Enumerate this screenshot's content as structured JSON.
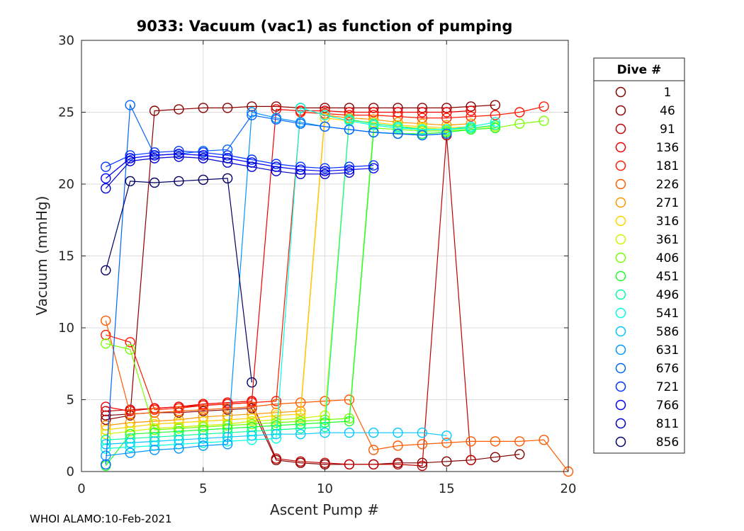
{
  "chart_data": {
    "type": "line",
    "title": "9033: Vacuum (vac1) as function of pumping",
    "xlabel": "Ascent Pump #",
    "ylabel": "Vacuum (mmHg)",
    "xlim": [
      0,
      20
    ],
    "ylim": [
      0,
      30
    ],
    "xticks": [
      0,
      5,
      10,
      15,
      20
    ],
    "yticks": [
      0,
      5,
      10,
      15,
      20,
      25,
      30
    ],
    "grid": true,
    "legend": {
      "title": "Dive #",
      "placement": "outside-right"
    },
    "series": [
      {
        "name": "1",
        "color": "#800000",
        "x": [
          1,
          2,
          3,
          4,
          5,
          6,
          7,
          8,
          9,
          10,
          11,
          12,
          13,
          14,
          15,
          16,
          17,
          18
        ],
        "values": [
          3.9,
          4.0,
          4.1,
          4.1,
          4.2,
          4.3,
          4.4,
          0.8,
          0.6,
          0.5,
          0.5,
          0.5,
          0.6,
          0.6,
          0.7,
          0.8,
          1.0,
          1.2
        ]
      },
      {
        "name": "46",
        "color": "#8c0000",
        "x": [
          1,
          2,
          3,
          4,
          5,
          6,
          7,
          8,
          9,
          10,
          11,
          12,
          13,
          14,
          15,
          16,
          17
        ],
        "values": [
          3.6,
          3.9,
          25.1,
          25.2,
          25.3,
          25.3,
          25.4,
          25.4,
          25.3,
          25.3,
          25.3,
          25.3,
          25.3,
          25.3,
          25.3,
          25.4,
          25.5
        ]
      },
      {
        "name": "91",
        "color": "#bf0000",
        "x": [
          1,
          2,
          3,
          4,
          5,
          6,
          7,
          8,
          9,
          10,
          11,
          12,
          13,
          14,
          15,
          16
        ],
        "values": [
          4.2,
          4.3,
          4.4,
          4.5,
          4.6,
          4.7,
          4.8,
          0.9,
          0.7,
          0.6,
          0.5,
          0.5,
          0.5,
          0.4,
          23.4,
          0.8
        ]
      },
      {
        "name": "136",
        "color": "#f20000",
        "x": [
          1,
          2,
          3,
          4,
          5,
          6,
          7,
          8,
          9,
          10,
          11,
          12,
          13,
          14,
          15,
          16
        ],
        "values": [
          4.5,
          4.2,
          4.4,
          4.5,
          4.7,
          4.8,
          4.9,
          25.2,
          25.1,
          25.1,
          25.0,
          25.0,
          25.0,
          25.0,
          25.0,
          25.1
        ]
      },
      {
        "name": "181",
        "color": "#ff1a00",
        "x": [
          1,
          2,
          3,
          4,
          5,
          6,
          7,
          8,
          9,
          10,
          11,
          12,
          13,
          14,
          15,
          16,
          17,
          18,
          19
        ],
        "values": [
          9.5,
          9.0,
          4.3,
          4.4,
          4.6,
          4.7,
          4.8,
          4.9,
          25.0,
          24.9,
          24.8,
          24.8,
          24.7,
          24.6,
          24.6,
          24.7,
          24.8,
          25.0,
          25.4
        ]
      },
      {
        "name": "226",
        "color": "#ff5a00",
        "x": [
          1,
          2,
          3,
          4,
          5,
          6,
          7,
          8,
          9,
          10,
          11,
          12,
          13,
          14,
          15,
          16,
          17,
          18,
          19,
          20
        ],
        "values": [
          10.5,
          4.0,
          4.1,
          4.2,
          4.3,
          4.4,
          4.5,
          4.7,
          4.8,
          4.9,
          5.0,
          1.5,
          1.8,
          1.9,
          2.0,
          2.1,
          2.1,
          2.1,
          2.2,
          0.0
        ]
      },
      {
        "name": "271",
        "color": "#ff9600",
        "x": [
          1,
          2,
          3,
          4,
          5,
          6,
          7,
          8,
          9,
          10,
          11,
          12,
          13,
          14,
          15,
          16
        ],
        "values": [
          3.2,
          3.4,
          3.5,
          3.6,
          3.8,
          3.9,
          4.0,
          4.1,
          4.2,
          24.8,
          24.6,
          24.5,
          24.3,
          24.2,
          24.1,
          24.2
        ]
      },
      {
        "name": "316",
        "color": "#ffd200",
        "x": [
          1,
          2,
          3,
          4,
          5,
          6,
          7,
          8,
          9,
          10,
          11,
          12,
          13,
          14,
          15,
          16
        ],
        "values": [
          2.9,
          3.1,
          3.3,
          3.4,
          3.5,
          3.6,
          3.7,
          3.9,
          4.0,
          24.6,
          24.4,
          24.3,
          24.1,
          24.0,
          23.9,
          24.0
        ]
      },
      {
        "name": "361",
        "color": "#d2f000",
        "x": [
          1,
          2,
          3,
          4,
          5,
          6,
          7,
          8,
          9,
          10,
          11,
          12,
          13,
          14,
          15,
          16,
          17
        ],
        "values": [
          2.6,
          2.8,
          3.0,
          3.1,
          3.2,
          3.3,
          3.5,
          3.6,
          3.7,
          3.9,
          24.5,
          24.2,
          24.0,
          23.9,
          23.8,
          23.9,
          24.0
        ]
      },
      {
        "name": "406",
        "color": "#78ff00",
        "x": [
          1,
          2,
          3,
          4,
          5,
          6,
          7,
          8,
          9,
          10,
          11,
          12,
          13,
          14,
          15,
          16,
          17,
          18,
          19
        ],
        "values": [
          8.9,
          8.5,
          2.9,
          3.0,
          3.1,
          3.2,
          3.3,
          3.4,
          3.5,
          3.6,
          3.7,
          23.9,
          23.8,
          23.7,
          23.7,
          23.8,
          23.9,
          24.2,
          24.4
        ]
      },
      {
        "name": "451",
        "color": "#1eff2d",
        "x": [
          1,
          2,
          3,
          4,
          5,
          6,
          7,
          8,
          9,
          10,
          11,
          12,
          13,
          14,
          15,
          16,
          17
        ],
        "values": [
          0.4,
          2.6,
          2.7,
          2.8,
          2.9,
          3.0,
          3.1,
          3.2,
          3.3,
          3.4,
          3.5,
          23.6,
          23.5,
          23.5,
          23.6,
          23.8,
          23.9
        ]
      },
      {
        "name": "496",
        "color": "#00ff9b",
        "x": [
          1,
          2,
          3,
          4,
          5,
          6,
          7,
          8,
          9,
          10,
          11,
          12,
          13,
          14,
          15,
          16,
          17
        ],
        "values": [
          2.2,
          2.3,
          2.4,
          2.5,
          2.6,
          2.7,
          2.8,
          2.9,
          3.0,
          3.1,
          24.5,
          24.2,
          24.0,
          23.8,
          23.8,
          23.9,
          24.1
        ]
      },
      {
        "name": "541",
        "color": "#00ffdc",
        "x": [
          1,
          2,
          3,
          4,
          5,
          6,
          7,
          8,
          9,
          10,
          11,
          12,
          13,
          14,
          15,
          16,
          17
        ],
        "values": [
          1.6,
          1.7,
          1.8,
          1.9,
          2.0,
          2.1,
          2.2,
          2.3,
          25.3,
          24.8,
          24.4,
          24.1,
          23.9,
          23.8,
          23.8,
          24.0,
          24.3
        ]
      },
      {
        "name": "586",
        "color": "#00c8ff",
        "x": [
          1,
          2,
          3,
          4,
          5,
          6,
          7,
          8,
          9,
          10,
          11,
          12,
          13,
          14,
          15
        ],
        "values": [
          1.9,
          2.0,
          2.1,
          2.2,
          2.3,
          2.4,
          2.5,
          2.6,
          2.6,
          2.7,
          2.7,
          2.7,
          2.7,
          2.7,
          2.5
        ]
      },
      {
        "name": "631",
        "color": "#0096ff",
        "x": [
          1,
          2,
          3,
          4,
          5,
          6,
          7,
          8,
          9,
          10,
          11,
          12,
          13,
          14,
          15
        ],
        "values": [
          1.1,
          1.3,
          1.5,
          1.6,
          1.8,
          1.9,
          25.0,
          24.6,
          24.3,
          24.0,
          23.8,
          23.6,
          23.5,
          23.4,
          23.5
        ]
      },
      {
        "name": "676",
        "color": "#0064ff",
        "x": [
          1,
          2,
          3,
          4,
          5,
          6,
          7,
          8,
          9,
          10,
          11,
          12,
          13,
          14,
          15
        ],
        "values": [
          0.5,
          25.5,
          22.0,
          22.1,
          22.3,
          22.4,
          24.8,
          24.5,
          24.2,
          24.0,
          23.8,
          23.6,
          23.5,
          23.4,
          23.5
        ]
      },
      {
        "name": "721",
        "color": "#0032ff",
        "x": [
          1,
          2,
          3,
          4,
          5,
          6,
          7,
          8,
          9,
          10,
          11,
          12
        ],
        "values": [
          21.2,
          22.0,
          22.2,
          22.3,
          22.2,
          22.0,
          21.7,
          21.4,
          21.2,
          21.1,
          21.2,
          21.3
        ]
      },
      {
        "name": "766",
        "color": "#0000f5",
        "x": [
          1,
          2,
          3,
          4,
          5,
          6,
          7,
          8,
          9,
          10,
          11,
          12
        ],
        "values": [
          20.4,
          21.8,
          22.0,
          22.1,
          22.0,
          21.8,
          21.5,
          21.2,
          21.0,
          20.9,
          21.0,
          21.1
        ]
      },
      {
        "name": "811",
        "color": "#0000c8",
        "x": [
          1,
          2,
          3,
          4,
          5,
          6,
          7,
          8,
          9,
          10,
          11
        ],
        "values": [
          19.7,
          21.6,
          21.8,
          21.9,
          21.8,
          21.5,
          21.2,
          20.9,
          20.7,
          20.7,
          20.8
        ]
      },
      {
        "name": "856",
        "color": "#000064",
        "x": [
          1,
          2,
          3,
          4,
          5,
          6,
          7
        ],
        "values": [
          14.0,
          20.2,
          20.1,
          20.2,
          20.3,
          20.4,
          6.2
        ]
      }
    ]
  },
  "footer": {
    "text": "WHOI ALAMO:10-Feb-2021"
  }
}
